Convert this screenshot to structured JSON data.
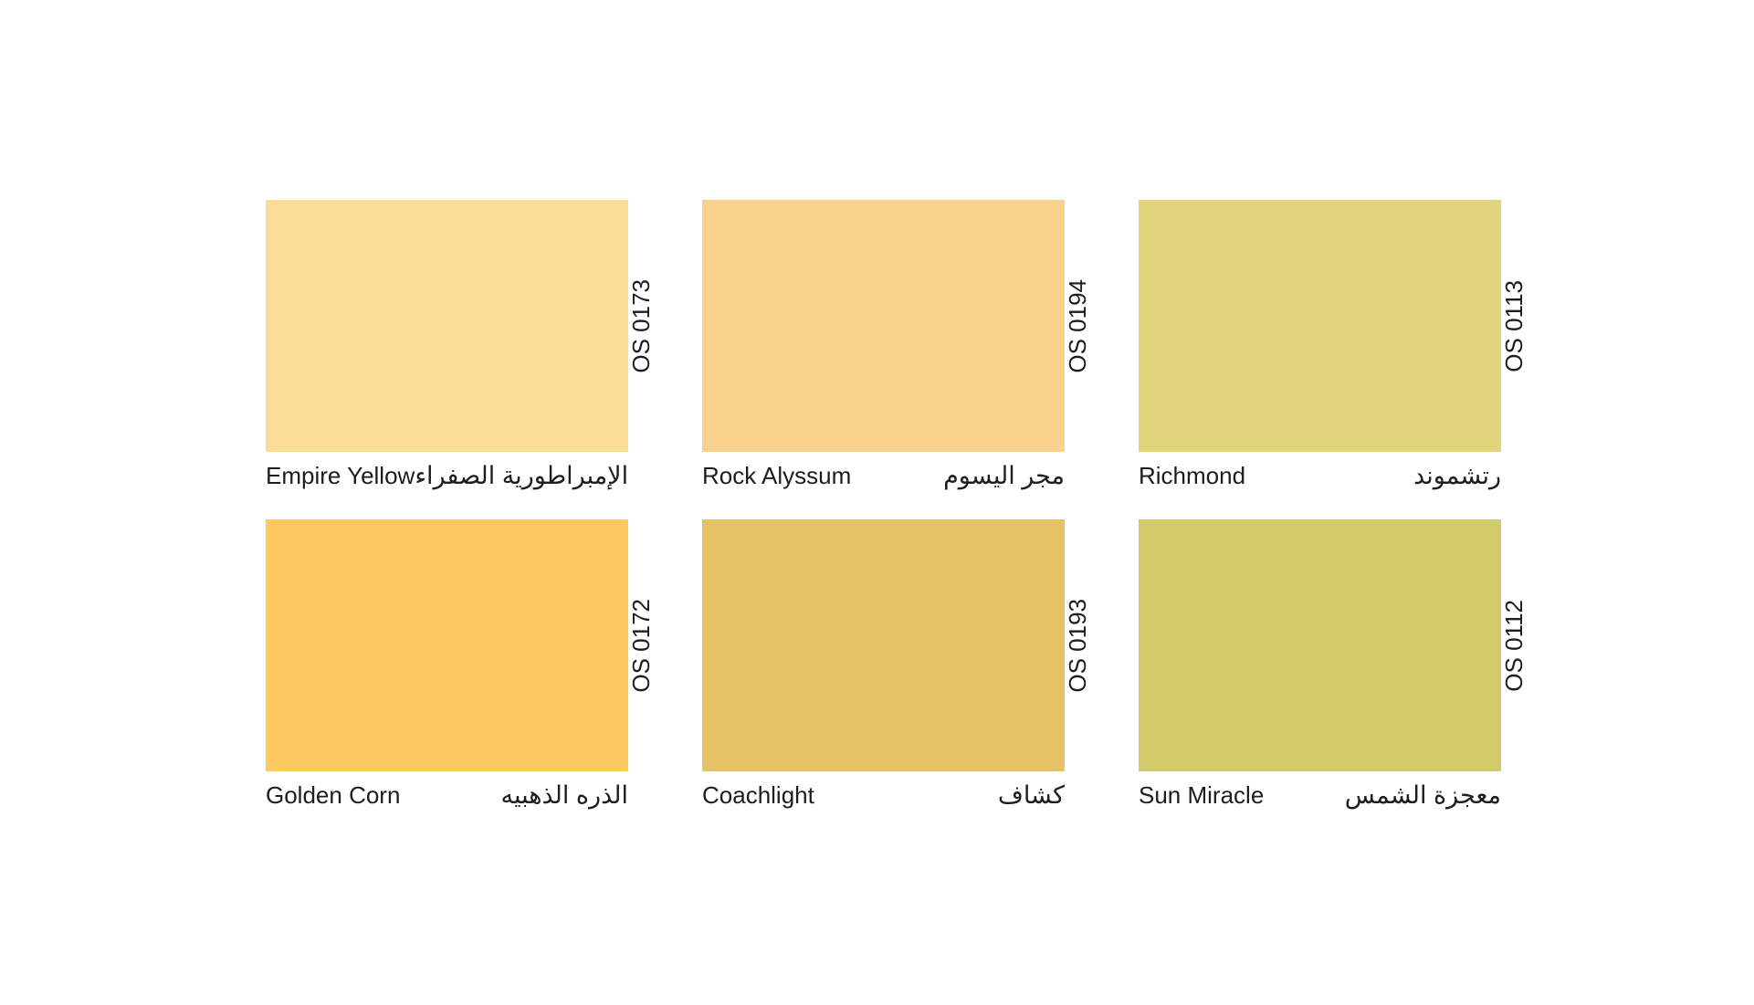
{
  "page": {
    "background_color": "#ffffff",
    "text_color": "#1d1d1b"
  },
  "swatches": [
    {
      "name_en": "Empire Yellow",
      "name_ar": "الإمبراطورية الصفراء",
      "code": "OS 0173",
      "color": "#FBDC95"
    },
    {
      "name_en": "Rock Alyssum",
      "name_ar": "مجر اليسوم",
      "code": "OS 0194",
      "color": "#FBD28C"
    },
    {
      "name_en": "Richmond",
      "name_ar": "رتشموند",
      "code": "OS 0113",
      "color": "#E2D47D"
    },
    {
      "name_en": "Golden Corn",
      "name_ar": "الذره الذهبيه",
      "code": "OS 0172",
      "color": "#FDCA5F"
    },
    {
      "name_en": "Coachlight",
      "name_ar": "كشاف",
      "code": "OS 0193",
      "color": "#E7C166"
    },
    {
      "name_en": "Sun Miracle",
      "name_ar": "معجزة الشمس",
      "code": "OS 0112",
      "color": "#D3CB6B"
    }
  ]
}
